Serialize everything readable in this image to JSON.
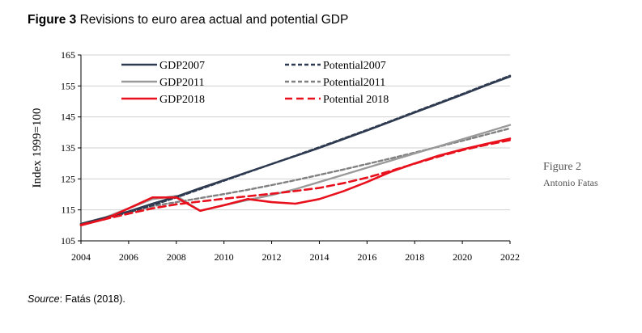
{
  "figure": {
    "label": "Figure 3",
    "title": "Revisions to euro area actual and potential GDP"
  },
  "side": {
    "caption": "Figure 2",
    "author": "Antonio Fatas"
  },
  "source": {
    "label": "Source",
    "text": ": Fatás (2018)."
  },
  "chart_data": {
    "type": "line",
    "ylabel": "Index  1999=100",
    "xlabel": "",
    "xlim": [
      2004,
      2022
    ],
    "ylim": [
      105,
      165
    ],
    "x_ticks": [
      2004,
      2006,
      2008,
      2010,
      2012,
      2014,
      2016,
      2018,
      2020,
      2022
    ],
    "y_ticks": [
      105,
      115,
      125,
      135,
      145,
      155,
      165
    ],
    "grid": true,
    "legend_position": "top-left",
    "series": [
      {
        "name": "GDP2007",
        "color": "#2e3a50",
        "dash": "solid",
        "points": [
          [
            2004,
            110.5
          ],
          [
            2005,
            112.5
          ],
          [
            2006,
            114.5
          ],
          [
            2007,
            117
          ],
          [
            2008,
            119.3
          ],
          [
            2009,
            122
          ],
          [
            2010,
            124.6
          ],
          [
            2011,
            127.2
          ],
          [
            2012,
            129.8
          ],
          [
            2013,
            132.4
          ],
          [
            2014,
            135
          ],
          [
            2015,
            137.8
          ],
          [
            2016,
            140.6
          ],
          [
            2017,
            143.5
          ],
          [
            2018,
            146.4
          ],
          [
            2019,
            149.3
          ],
          [
            2020,
            152.2
          ],
          [
            2021,
            155.2
          ],
          [
            2022,
            158
          ]
        ]
      },
      {
        "name": "Potential2007",
        "color": "#2e3a50",
        "dash": "dashed",
        "points": [
          [
            2004,
            110.3
          ],
          [
            2005,
            112.3
          ],
          [
            2006,
            114.3
          ],
          [
            2007,
            116.5
          ],
          [
            2008,
            119
          ],
          [
            2009,
            121.7
          ],
          [
            2010,
            124.4
          ],
          [
            2011,
            127.1
          ],
          [
            2012,
            129.8
          ],
          [
            2013,
            132.5
          ],
          [
            2014,
            135.2
          ],
          [
            2015,
            138
          ],
          [
            2016,
            140.8
          ],
          [
            2017,
            143.7
          ],
          [
            2018,
            146.6
          ],
          [
            2019,
            149.5
          ],
          [
            2020,
            152.4
          ],
          [
            2021,
            155.4
          ],
          [
            2022,
            158.3
          ]
        ]
      },
      {
        "name": "GDP2011",
        "color": "#9a9a9a",
        "dash": "solid",
        "points": [
          [
            2004,
            110.5
          ],
          [
            2005,
            112.5
          ],
          [
            2006,
            115.5
          ],
          [
            2007,
            118.5
          ],
          [
            2008,
            119.5
          ],
          [
            2009,
            114.7
          ],
          [
            2010,
            116.5
          ],
          [
            2011,
            118.2
          ],
          [
            2012,
            119.8
          ],
          [
            2013,
            121.7
          ],
          [
            2014,
            124
          ],
          [
            2015,
            126.3
          ],
          [
            2016,
            128.6
          ],
          [
            2017,
            130.9
          ],
          [
            2018,
            133.2
          ],
          [
            2019,
            135.5
          ],
          [
            2020,
            137.8
          ],
          [
            2021,
            140.1
          ],
          [
            2022,
            142.4
          ]
        ]
      },
      {
        "name": "Potential2011",
        "color": "#808080",
        "dash": "dashed",
        "points": [
          [
            2004,
            110.3
          ],
          [
            2005,
            112.2
          ],
          [
            2006,
            114.2
          ],
          [
            2007,
            116.2
          ],
          [
            2008,
            117.5
          ],
          [
            2009,
            118.8
          ],
          [
            2010,
            120.1
          ],
          [
            2011,
            121.5
          ],
          [
            2012,
            123
          ],
          [
            2013,
            124.6
          ],
          [
            2014,
            126.3
          ],
          [
            2015,
            128
          ],
          [
            2016,
            129.8
          ],
          [
            2017,
            131.6
          ],
          [
            2018,
            133.5
          ],
          [
            2019,
            135.4
          ],
          [
            2020,
            137.3
          ],
          [
            2021,
            139.3
          ],
          [
            2022,
            141.3
          ]
        ]
      },
      {
        "name": "GDP2018",
        "color": "#e8101c",
        "dash": "solid",
        "points": [
          [
            2004,
            110
          ],
          [
            2005,
            112
          ],
          [
            2006,
            115.5
          ],
          [
            2007,
            119
          ],
          [
            2008,
            119
          ],
          [
            2009,
            114.7
          ],
          [
            2010,
            116.5
          ],
          [
            2011,
            118.5
          ],
          [
            2012,
            117.5
          ],
          [
            2013,
            117
          ],
          [
            2014,
            118.5
          ],
          [
            2015,
            121
          ],
          [
            2016,
            124
          ],
          [
            2017,
            127.3
          ],
          [
            2018,
            130
          ],
          [
            2019,
            132.5
          ],
          [
            2020,
            134.5
          ],
          [
            2021,
            136.3
          ],
          [
            2022,
            138
          ]
        ]
      },
      {
        "name": "Potential 2018",
        "color": "#e8101c",
        "dash": "dashed",
        "points": [
          [
            2004,
            110.2
          ],
          [
            2005,
            112
          ],
          [
            2006,
            113.8
          ],
          [
            2007,
            115.5
          ],
          [
            2008,
            116.8
          ],
          [
            2009,
            117.7
          ],
          [
            2010,
            118.6
          ],
          [
            2011,
            119.4
          ],
          [
            2012,
            120.2
          ],
          [
            2013,
            121.1
          ],
          [
            2014,
            122.1
          ],
          [
            2015,
            123.6
          ],
          [
            2016,
            125.4
          ],
          [
            2017,
            127.6
          ],
          [
            2018,
            129.9
          ],
          [
            2019,
            132.2
          ],
          [
            2020,
            134.3
          ],
          [
            2021,
            136
          ],
          [
            2022,
            137.5
          ]
        ]
      }
    ]
  }
}
